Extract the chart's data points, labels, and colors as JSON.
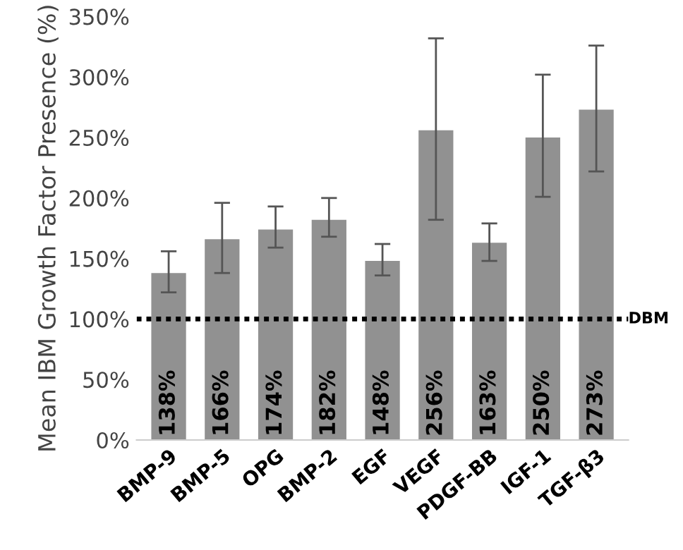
{
  "chart_data": {
    "type": "bar",
    "ylabel": "Mean IBM Growth Factor Presence (%)",
    "categories": [
      "BMP-9",
      "BMP-5",
      "OPG",
      "BMP-2",
      "EGF",
      "VEGF",
      "PDGF-BB",
      "IGF-1",
      "TGF-β3"
    ],
    "values": [
      138,
      166,
      174,
      182,
      148,
      256,
      163,
      250,
      273
    ],
    "errors": [
      [
        122,
        156
      ],
      [
        138,
        196
      ],
      [
        159,
        193
      ],
      [
        168,
        200
      ],
      [
        136,
        162
      ],
      [
        182,
        332
      ],
      [
        148,
        179
      ],
      [
        201,
        302
      ],
      [
        222,
        326
      ]
    ],
    "value_labels": [
      "138%",
      "166%",
      "174%",
      "182%",
      "148%",
      "256%",
      "163%",
      "250%",
      "273%"
    ],
    "color": "#919191",
    "ylim": [
      0,
      350
    ],
    "yticks": [
      {
        "value": 0,
        "label": "0%"
      },
      {
        "value": 50,
        "label": "50%"
      },
      {
        "value": 100,
        "label": "100%"
      },
      {
        "value": 150,
        "label": "150%"
      },
      {
        "value": 200,
        "label": "200%"
      },
      {
        "value": 250,
        "label": "250%"
      },
      {
        "value": 300,
        "label": "300%"
      },
      {
        "value": 350,
        "label": "350%"
      }
    ],
    "ref_lines": [
      {
        "axis": "y",
        "value": 100,
        "label": "DBM",
        "color": "#000000",
        "line_style": "dotted"
      }
    ],
    "grid": false
  }
}
